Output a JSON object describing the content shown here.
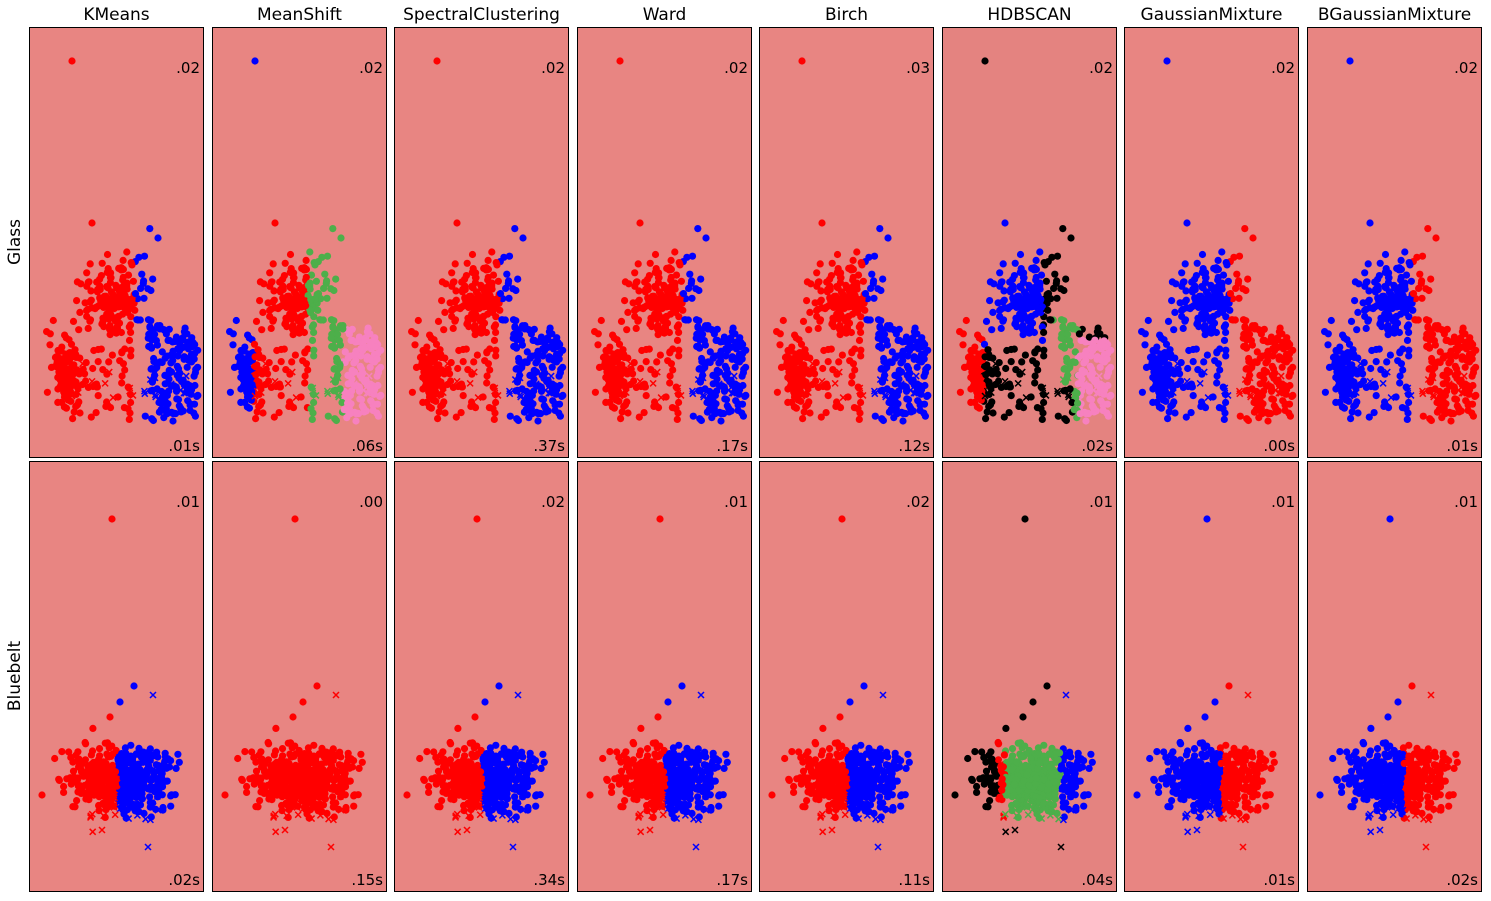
{
  "columns": [
    "KMeans",
    "MeanShift",
    "SpectralClustering",
    "Ward",
    "Birch",
    "HDBSCAN",
    "GaussianMixture",
    "BGaussianMixture"
  ],
  "rows": [
    "Glass",
    "Bluebelt"
  ],
  "colors": {
    "background_light": "#e88582",
    "background_dark": "#e48380",
    "red": "#ff0000",
    "blue": "#0000ff",
    "green": "#4daf4a",
    "pink": "#f781bf",
    "black": "#000000"
  },
  "chart_data": [
    {
      "type": "scatter",
      "dataset": "Glass",
      "method": "KMeans",
      "score": ".02",
      "time": ".01s",
      "clusters": [
        "red",
        "blue"
      ],
      "split": "left-red-right-blue",
      "bg": "light"
    },
    {
      "type": "scatter",
      "dataset": "Glass",
      "method": "MeanShift",
      "score": ".02",
      "time": ".06s",
      "clusters": [
        "blue",
        "red",
        "green",
        "pink"
      ],
      "split": "four",
      "bg": "light"
    },
    {
      "type": "scatter",
      "dataset": "Glass",
      "method": "SpectralClustering",
      "score": ".02",
      "time": ".37s",
      "clusters": [
        "red",
        "blue"
      ],
      "split": "left-red-right-blue",
      "bg": "light"
    },
    {
      "type": "scatter",
      "dataset": "Glass",
      "method": "Ward",
      "score": ".02",
      "time": ".17s",
      "clusters": [
        "red",
        "blue"
      ],
      "split": "left-red-right-blue",
      "bg": "light"
    },
    {
      "type": "scatter",
      "dataset": "Glass",
      "method": "Birch",
      "score": ".03",
      "time": ".12s",
      "clusters": [
        "red",
        "blue"
      ],
      "split": "left-red-right-blue",
      "bg": "light"
    },
    {
      "type": "scatter",
      "dataset": "Glass",
      "method": "HDBSCAN",
      "score": ".02",
      "time": ".02s",
      "clusters": [
        "black",
        "red",
        "blue",
        "green",
        "pink"
      ],
      "split": "hdbscan",
      "bg": "dark"
    },
    {
      "type": "scatter",
      "dataset": "Glass",
      "method": "GaussianMixture",
      "score": ".02",
      "time": ".00s",
      "clusters": [
        "blue",
        "red"
      ],
      "split": "left-blue-right-red",
      "bg": "light"
    },
    {
      "type": "scatter",
      "dataset": "Glass",
      "method": "BGaussianMixture",
      "score": ".02",
      "time": ".01s",
      "clusters": [
        "blue",
        "red"
      ],
      "split": "left-blue-right-red",
      "bg": "light"
    },
    {
      "type": "scatter",
      "dataset": "Bluebelt",
      "method": "KMeans",
      "score": ".01",
      "time": ".02s",
      "clusters": [
        "red",
        "blue"
      ],
      "split": "left-red-right-blue",
      "bg": "light"
    },
    {
      "type": "scatter",
      "dataset": "Bluebelt",
      "method": "MeanShift",
      "score": ".00",
      "time": ".15s",
      "clusters": [
        "red"
      ],
      "split": "all-red",
      "bg": "light"
    },
    {
      "type": "scatter",
      "dataset": "Bluebelt",
      "method": "SpectralClustering",
      "score": ".02",
      "time": ".34s",
      "clusters": [
        "red",
        "blue"
      ],
      "split": "left-red-right-blue",
      "bg": "light"
    },
    {
      "type": "scatter",
      "dataset": "Bluebelt",
      "method": "Ward",
      "score": ".01",
      "time": ".17s",
      "clusters": [
        "red",
        "blue"
      ],
      "split": "left-red-right-blue",
      "bg": "light"
    },
    {
      "type": "scatter",
      "dataset": "Bluebelt",
      "method": "Birch",
      "score": ".02",
      "time": ".11s",
      "clusters": [
        "red",
        "blue"
      ],
      "split": "left-red-right-blue",
      "bg": "light"
    },
    {
      "type": "scatter",
      "dataset": "Bluebelt",
      "method": "HDBSCAN",
      "score": ".01",
      "time": ".04s",
      "clusters": [
        "black",
        "green",
        "blue",
        "red"
      ],
      "split": "hdbscan",
      "bg": "dark"
    },
    {
      "type": "scatter",
      "dataset": "Bluebelt",
      "method": "GaussianMixture",
      "score": ".01",
      "time": ".01s",
      "clusters": [
        "blue",
        "red"
      ],
      "split": "left-blue-right-red",
      "bg": "light"
    },
    {
      "type": "scatter",
      "dataset": "Bluebelt",
      "method": "BGaussianMixture",
      "score": ".01",
      "time": ".02s",
      "clusters": [
        "blue",
        "red"
      ],
      "split": "left-blue-right-red",
      "bg": "light"
    }
  ]
}
